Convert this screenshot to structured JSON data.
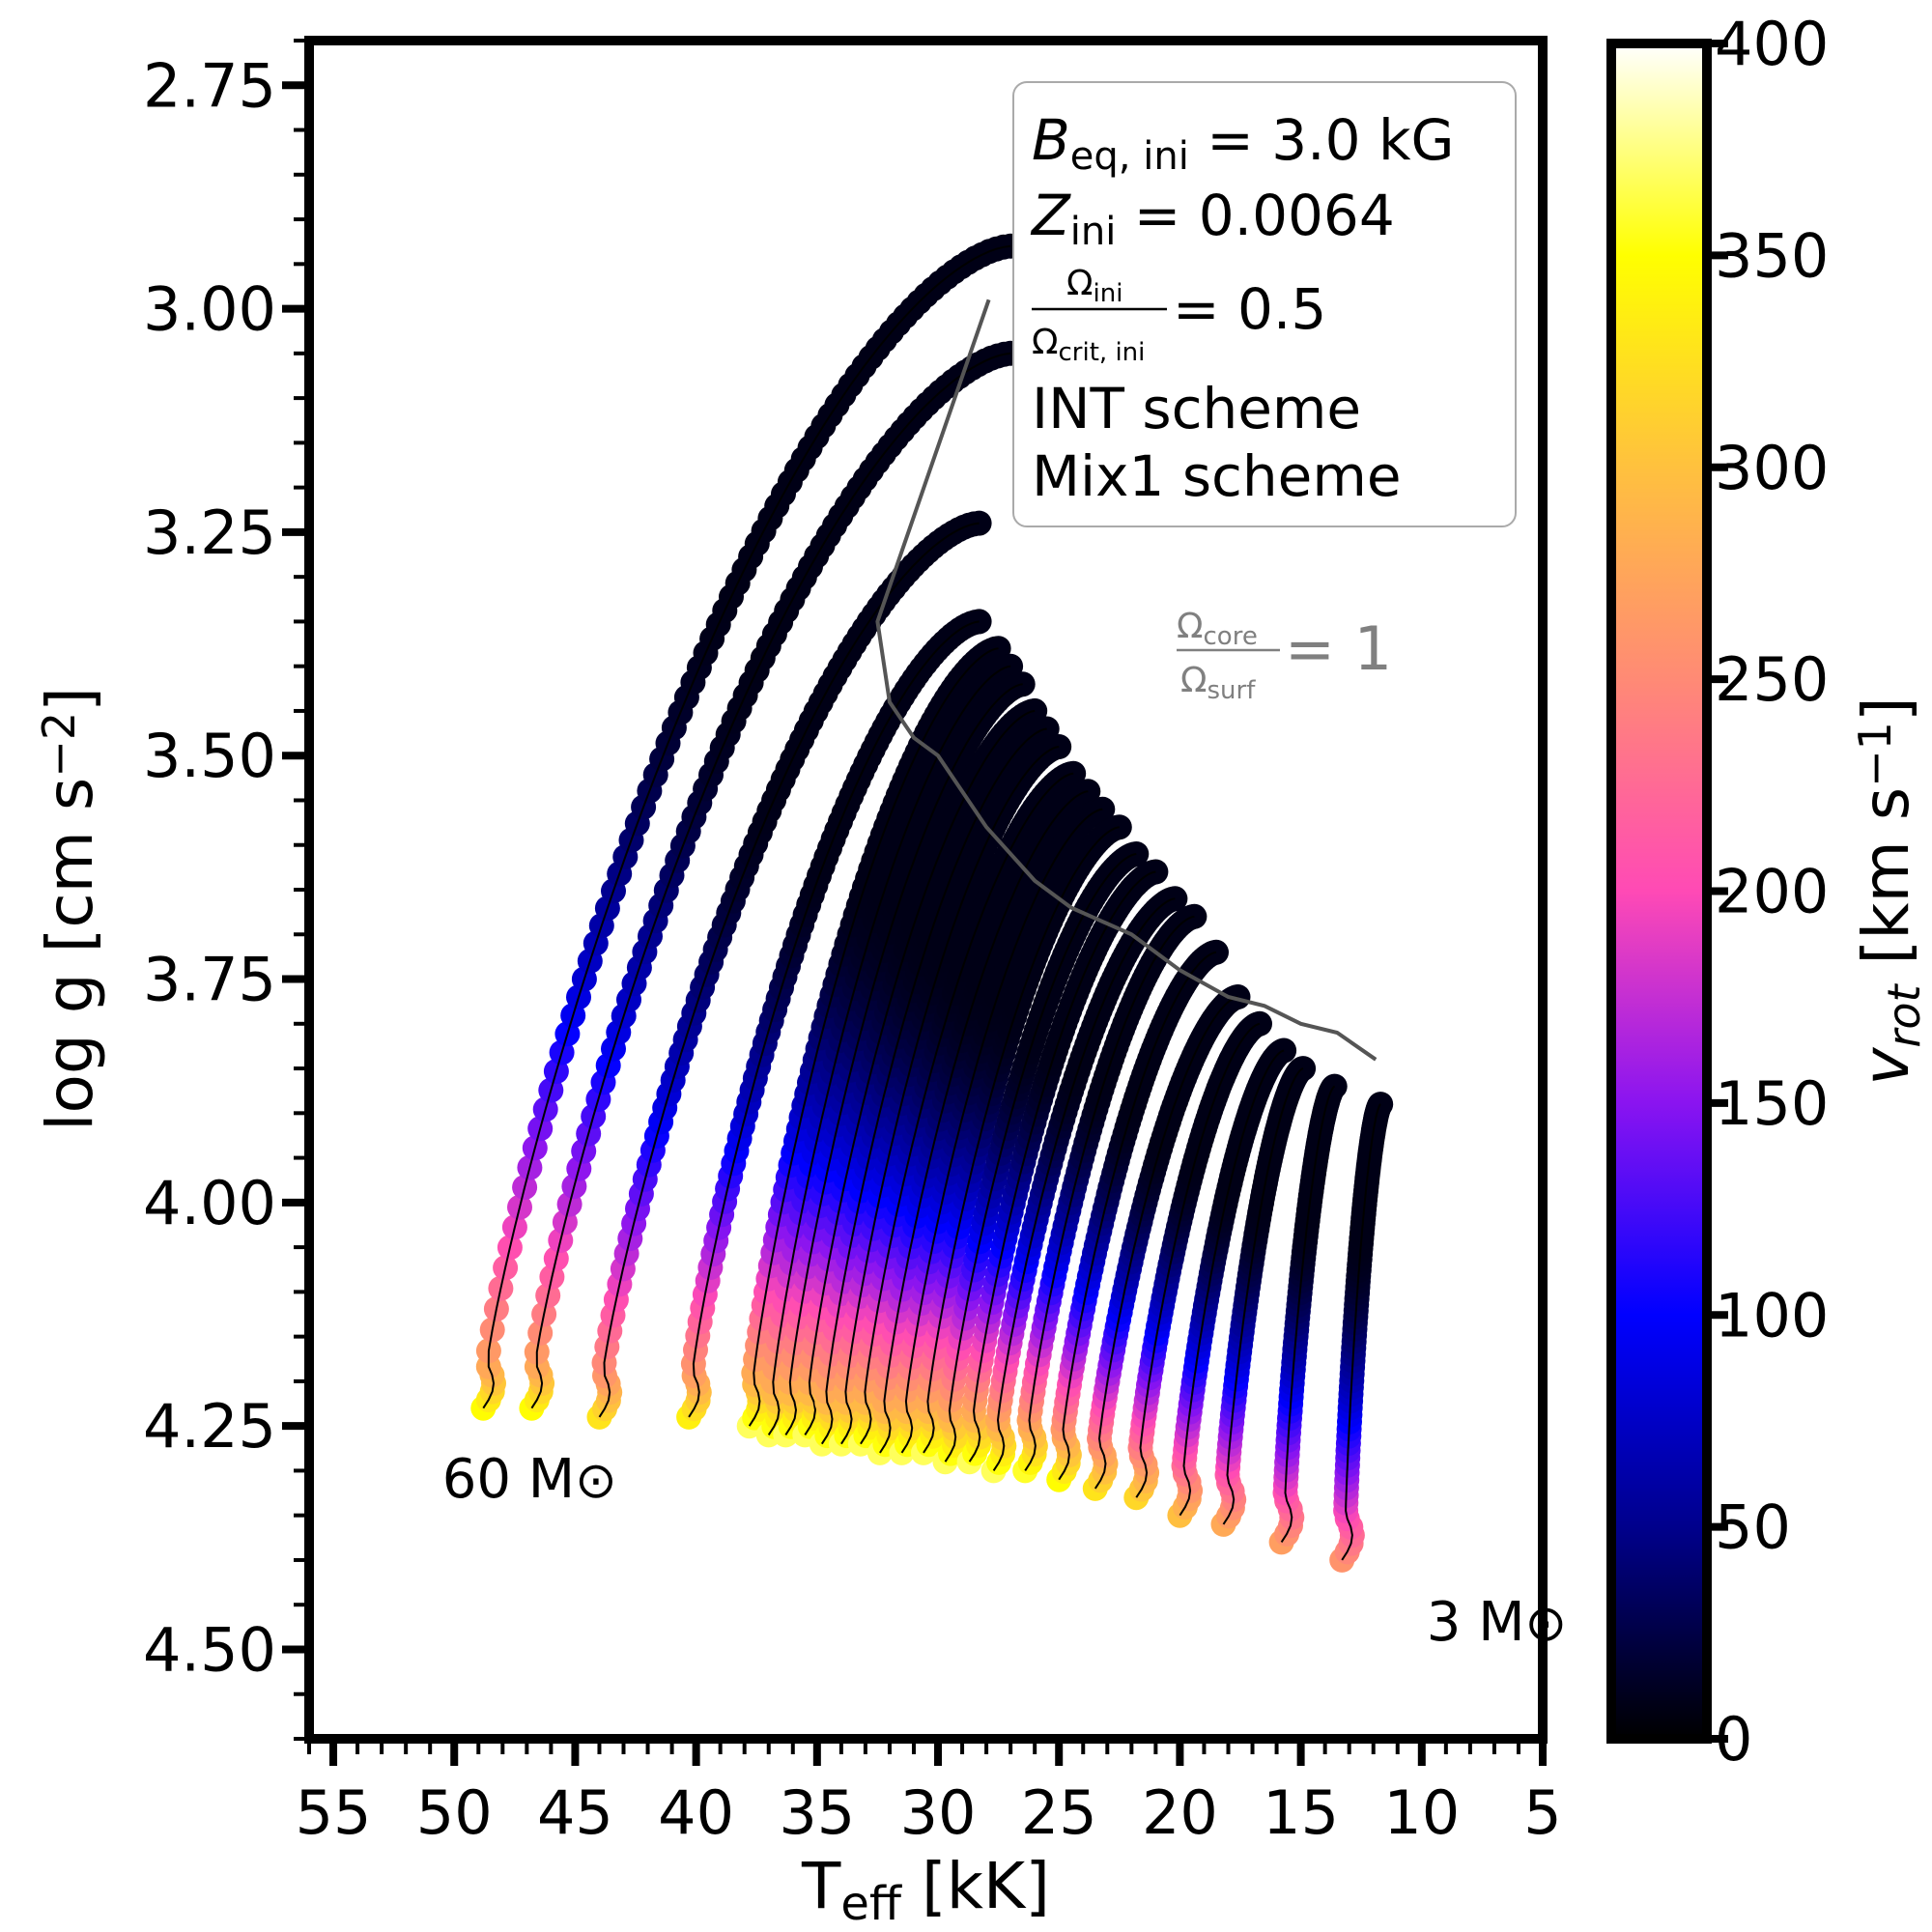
{
  "chart_data": {
    "type": "line",
    "xlabel": "T",
    "xlabel_sub": "eff",
    "xlabel_unit": "[kK]",
    "ylabel": "log g [cm s",
    "ylabel_sup": "−2",
    "ylabel_close": "]",
    "xlim": [
      56,
      5
    ],
    "ylim": [
      4.6,
      2.7
    ],
    "x_ticks": [
      {
        "value": 55,
        "label": "55"
      },
      {
        "value": 50,
        "label": "50"
      },
      {
        "value": 45,
        "label": "45"
      },
      {
        "value": 40,
        "label": "40"
      },
      {
        "value": 35,
        "label": "35"
      },
      {
        "value": 30,
        "label": "30"
      },
      {
        "value": 25,
        "label": "25"
      },
      {
        "value": 20,
        "label": "20"
      },
      {
        "value": 15,
        "label": "15"
      },
      {
        "value": 10,
        "label": "10"
      },
      {
        "value": 5,
        "label": "5"
      }
    ],
    "y_ticks": [
      {
        "value": 2.75,
        "label": "2.75"
      },
      {
        "value": 3.0,
        "label": "3.00"
      },
      {
        "value": 3.25,
        "label": "3.25"
      },
      {
        "value": 3.5,
        "label": "3.50"
      },
      {
        "value": 3.75,
        "label": "3.75"
      },
      {
        "value": 4.0,
        "label": "4.00"
      },
      {
        "value": 4.25,
        "label": "4.25"
      },
      {
        "value": 4.5,
        "label": "4.50"
      }
    ],
    "legend": {
      "placement": "top-right",
      "lines": [
        {
          "main": "B",
          "sub": "eq, ini",
          "rest": " =  3.0 kG"
        },
        {
          "main": "Z",
          "sub": "ini",
          "rest": " =  0.0064"
        },
        {
          "frac_num": "Ω",
          "frac_num_sub": "ini",
          "frac_den": "Ω",
          "frac_den_sub": "crit, ini",
          "rest": " = 0.5"
        },
        {
          "text": "INT scheme"
        },
        {
          "text": "Mix1 scheme"
        }
      ]
    },
    "annotation_ratio": {
      "num": "Ω",
      "num_sub": "core",
      "den": "Ω",
      "den_sub": "surf",
      "rest": " = 1",
      "color": "#808080"
    },
    "mass_labels": [
      {
        "text": "60 M",
        "symbol": "⊙",
        "teff": 50.5,
        "logg": 4.33
      },
      {
        "text": "3 M",
        "symbol": "⊙",
        "teff": 9.8,
        "logg": 4.49
      }
    ],
    "colorbar": {
      "label": "v",
      "label_sub": "rot",
      "label_unit": " [km s",
      "label_sup": "−1",
      "label_close": "]",
      "range": [
        0,
        400
      ],
      "ticks": [
        {
          "value": 0,
          "label": "0"
        },
        {
          "value": 50,
          "label": "50"
        },
        {
          "value": 100,
          "label": "100"
        },
        {
          "value": 150,
          "label": "150"
        },
        {
          "value": 200,
          "label": "200"
        },
        {
          "value": 250,
          "label": "250"
        },
        {
          "value": 300,
          "label": "300"
        },
        {
          "value": 350,
          "label": "350"
        },
        {
          "value": 400,
          "label": "400"
        }
      ],
      "colormap": "gnuplot2",
      "stops": [
        "#000000",
        "#00008c",
        "#0000ff",
        "#8a14f0",
        "#ff4ab5",
        "#ff8a75",
        "#ffc13e",
        "#ffff00",
        "#ffffff"
      ]
    },
    "series": [
      {
        "zams": [
          48.8,
          4.23
        ],
        "tams": [
          27.0,
          2.93
        ],
        "v_zams": 340
      },
      {
        "zams": [
          46.8,
          4.23
        ],
        "tams": [
          27.0,
          3.05
        ],
        "v_zams": 340
      },
      {
        "zams": [
          44.0,
          4.24
        ],
        "tams": [
          28.3,
          3.24
        ],
        "v_zams": 320
      },
      {
        "zams": [
          40.3,
          4.24
        ],
        "tams": [
          28.3,
          3.35
        ],
        "v_zams": 330
      },
      {
        "zams": [
          37.8,
          4.25
        ],
        "tams": [
          27.5,
          3.38
        ],
        "v_zams": 360
      },
      {
        "zams": [
          37.0,
          4.26
        ],
        "tams": [
          27.0,
          3.4
        ],
        "v_zams": 360
      },
      {
        "zams": [
          36.3,
          4.26
        ],
        "tams": [
          26.5,
          3.42
        ],
        "v_zams": 360
      },
      {
        "zams": [
          35.5,
          4.26
        ],
        "tams": [
          26.0,
          3.45
        ],
        "v_zams": 360
      },
      {
        "zams": [
          34.8,
          4.27
        ],
        "tams": [
          25.5,
          3.47
        ],
        "v_zams": 360
      },
      {
        "zams": [
          34.0,
          4.27
        ],
        "tams": [
          25.0,
          3.49
        ],
        "v_zams": 360
      },
      {
        "zams": [
          33.2,
          4.27
        ],
        "tams": [
          24.4,
          3.52
        ],
        "v_zams": 360
      },
      {
        "zams": [
          32.4,
          4.28
        ],
        "tams": [
          23.8,
          3.54
        ],
        "v_zams": 360
      },
      {
        "zams": [
          31.5,
          4.28
        ],
        "tams": [
          23.2,
          3.56
        ],
        "v_zams": 360
      },
      {
        "zams": [
          30.6,
          4.28
        ],
        "tams": [
          22.5,
          3.58
        ],
        "v_zams": 360
      },
      {
        "zams": [
          29.7,
          4.29
        ],
        "tams": [
          21.8,
          3.61
        ],
        "v_zams": 360
      },
      {
        "zams": [
          28.7,
          4.29
        ],
        "tams": [
          21.0,
          3.63
        ],
        "v_zams": 360
      },
      {
        "zams": [
          27.7,
          4.3
        ],
        "tams": [
          20.2,
          3.66
        ],
        "v_zams": 360
      },
      {
        "zams": [
          26.4,
          4.3
        ],
        "tams": [
          19.4,
          3.68
        ],
        "v_zams": 350
      },
      {
        "zams": [
          25.0,
          4.31
        ],
        "tams": [
          18.5,
          3.72
        ],
        "v_zams": 340
      },
      {
        "zams": [
          23.5,
          4.32
        ],
        "tams": [
          17.6,
          3.77
        ],
        "v_zams": 320
      },
      {
        "zams": [
          21.8,
          4.33
        ],
        "tams": [
          16.7,
          3.8
        ],
        "v_zams": 310
      },
      {
        "zams": [
          20.0,
          4.35
        ],
        "tams": [
          15.7,
          3.83
        ],
        "v_zams": 290
      },
      {
        "zams": [
          18.2,
          4.36
        ],
        "tams": [
          14.9,
          3.85
        ],
        "v_zams": 270
      },
      {
        "zams": [
          15.8,
          4.38
        ],
        "tams": [
          13.6,
          3.87
        ],
        "v_zams": 260
      },
      {
        "zams": [
          13.3,
          4.4
        ],
        "tams": [
          11.7,
          3.89
        ],
        "v_zams": 250
      }
    ],
    "iso_line": {
      "color": "#555555",
      "points": [
        [
          27.9,
          2.99
        ],
        [
          32.5,
          3.35
        ],
        [
          32.0,
          3.44
        ],
        [
          31.0,
          3.48
        ],
        [
          30.0,
          3.5
        ],
        [
          28.0,
          3.58
        ],
        [
          26.0,
          3.64
        ],
        [
          24.5,
          3.67
        ],
        [
          22.0,
          3.7
        ],
        [
          20.0,
          3.74
        ],
        [
          18.0,
          3.77
        ],
        [
          16.5,
          3.78
        ],
        [
          15.0,
          3.8
        ],
        [
          13.5,
          3.81
        ],
        [
          11.9,
          3.84
        ]
      ]
    }
  }
}
